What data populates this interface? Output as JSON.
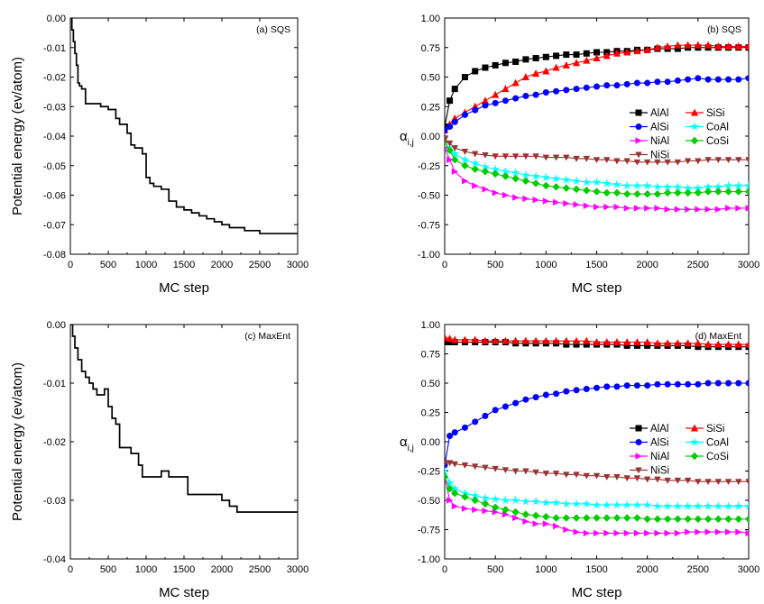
{
  "chart_data": [
    {
      "id": "a",
      "type": "line",
      "title": "(a) SQS",
      "xlabel": "MC step",
      "ylabel": "Potential energy (ev/atom)",
      "xlim": [
        0,
        3000
      ],
      "ylim": [
        -0.08,
        0.0
      ],
      "xticks": [
        0,
        500,
        1000,
        1500,
        2000,
        2500,
        3000
      ],
      "yticks": [
        0.0,
        -0.01,
        -0.02,
        -0.03,
        -0.04,
        -0.05,
        -0.06,
        -0.07,
        -0.08
      ],
      "ytick_labels": [
        "0.00",
        "-0.01",
        "-0.02",
        "-0.03",
        "-0.04",
        "-0.05",
        "-0.06",
        "-0.07",
        "-0.08"
      ],
      "grid": false,
      "series": [
        {
          "color": "#000000",
          "x": [
            0,
            20,
            40,
            60,
            80,
            100,
            120,
            150,
            200,
            250,
            300,
            400,
            500,
            550,
            600,
            650,
            700,
            750,
            800,
            850,
            900,
            950,
            1000,
            1050,
            1100,
            1200,
            1300,
            1400,
            1500,
            1600,
            1700,
            1800,
            1900,
            2000,
            2100,
            2200,
            2300,
            2400,
            2500,
            2600,
            2700,
            2800,
            2900,
            3000
          ],
          "y": [
            0.0,
            -0.004,
            -0.008,
            -0.012,
            -0.016,
            -0.022,
            -0.023,
            -0.024,
            -0.029,
            -0.029,
            -0.029,
            -0.03,
            -0.031,
            -0.031,
            -0.034,
            -0.036,
            -0.036,
            -0.039,
            -0.043,
            -0.044,
            -0.044,
            -0.046,
            -0.054,
            -0.056,
            -0.057,
            -0.058,
            -0.062,
            -0.064,
            -0.065,
            -0.066,
            -0.067,
            -0.068,
            -0.069,
            -0.07,
            -0.071,
            -0.071,
            -0.072,
            -0.072,
            -0.073,
            -0.073,
            -0.073,
            -0.073,
            -0.073,
            -0.073
          ]
        }
      ]
    },
    {
      "id": "b",
      "type": "line",
      "title": "(b) SQS",
      "xlabel": "MC step",
      "ylabel": "α",
      "ylabel_sub": "i,j",
      "xlim": [
        0,
        3000
      ],
      "ylim": [
        -1.0,
        1.0
      ],
      "xticks": [
        0,
        500,
        1000,
        1500,
        2000,
        2500,
        3000
      ],
      "yticks": [
        1.0,
        0.75,
        0.5,
        0.25,
        0.0,
        -0.25,
        -0.5,
        -0.75,
        -1.0
      ],
      "ytick_labels": [
        "1.00",
        "0.75",
        "0.50",
        "0.25",
        "0.00",
        "-0.25",
        "-0.50",
        "-0.75",
        "-1.00"
      ],
      "grid": false,
      "legend": "right-middle",
      "x": [
        0,
        50,
        100,
        200,
        300,
        400,
        500,
        600,
        700,
        800,
        900,
        1000,
        1100,
        1200,
        1300,
        1400,
        1500,
        1600,
        1700,
        1800,
        1900,
        2000,
        2100,
        2200,
        2300,
        2400,
        2500,
        2600,
        2700,
        2800,
        2900,
        3000
      ],
      "series": [
        {
          "name": "AlAl",
          "color": "#000000",
          "marker": "square",
          "values": [
            0.08,
            0.3,
            0.4,
            0.5,
            0.55,
            0.58,
            0.6,
            0.62,
            0.63,
            0.65,
            0.66,
            0.67,
            0.68,
            0.69,
            0.69,
            0.7,
            0.71,
            0.71,
            0.72,
            0.72,
            0.73,
            0.73,
            0.74,
            0.74,
            0.74,
            0.75,
            0.75,
            0.75,
            0.75,
            0.75,
            0.75,
            0.75
          ]
        },
        {
          "name": "SiSi",
          "color": "#ff0000",
          "marker": "triangle-up",
          "values": [
            0.05,
            0.1,
            0.15,
            0.2,
            0.25,
            0.3,
            0.35,
            0.4,
            0.45,
            0.5,
            0.53,
            0.55,
            0.58,
            0.6,
            0.62,
            0.64,
            0.66,
            0.68,
            0.7,
            0.71,
            0.72,
            0.73,
            0.75,
            0.76,
            0.77,
            0.77,
            0.77,
            0.77,
            0.76,
            0.76,
            0.76,
            0.76
          ]
        },
        {
          "name": "AlSi",
          "color": "#0000ff",
          "marker": "circle",
          "values": [
            0.05,
            0.08,
            0.12,
            0.18,
            0.22,
            0.26,
            0.28,
            0.3,
            0.32,
            0.34,
            0.35,
            0.37,
            0.38,
            0.39,
            0.4,
            0.41,
            0.42,
            0.43,
            0.43,
            0.44,
            0.45,
            0.45,
            0.46,
            0.46,
            0.47,
            0.48,
            0.49,
            0.48,
            0.48,
            0.48,
            0.48,
            0.49
          ]
        },
        {
          "name": "CoAl",
          "color": "#00ffff",
          "marker": "star",
          "values": [
            -0.05,
            -0.1,
            -0.15,
            -0.2,
            -0.23,
            -0.26,
            -0.28,
            -0.3,
            -0.31,
            -0.33,
            -0.34,
            -0.35,
            -0.36,
            -0.37,
            -0.38,
            -0.39,
            -0.39,
            -0.4,
            -0.41,
            -0.42,
            -0.42,
            -0.42,
            -0.43,
            -0.43,
            -0.43,
            -0.44,
            -0.44,
            -0.43,
            -0.43,
            -0.42,
            -0.42,
            -0.42
          ]
        },
        {
          "name": "NiAl",
          "color": "#ff00ff",
          "marker": "tri-right",
          "values": [
            -0.1,
            -0.2,
            -0.3,
            -0.38,
            -0.42,
            -0.45,
            -0.48,
            -0.5,
            -0.52,
            -0.53,
            -0.54,
            -0.55,
            -0.56,
            -0.57,
            -0.58,
            -0.59,
            -0.6,
            -0.6,
            -0.6,
            -0.61,
            -0.61,
            -0.61,
            -0.61,
            -0.62,
            -0.62,
            -0.62,
            -0.62,
            -0.62,
            -0.62,
            -0.61,
            -0.61,
            -0.61
          ]
        },
        {
          "name": "CoSi",
          "color": "#00cc00",
          "marker": "diamond",
          "values": [
            -0.05,
            -0.12,
            -0.2,
            -0.25,
            -0.28,
            -0.3,
            -0.32,
            -0.34,
            -0.36,
            -0.38,
            -0.4,
            -0.42,
            -0.43,
            -0.44,
            -0.45,
            -0.46,
            -0.47,
            -0.48,
            -0.48,
            -0.49,
            -0.49,
            -0.49,
            -0.49,
            -0.48,
            -0.48,
            -0.48,
            -0.48,
            -0.47,
            -0.47,
            -0.47,
            -0.47,
            -0.47
          ]
        },
        {
          "name": "NiSi",
          "color": "#993333",
          "marker": "triangle-down",
          "values": [
            -0.03,
            -0.06,
            -0.1,
            -0.13,
            -0.15,
            -0.16,
            -0.17,
            -0.17,
            -0.17,
            -0.17,
            -0.17,
            -0.18,
            -0.18,
            -0.18,
            -0.19,
            -0.19,
            -0.2,
            -0.2,
            -0.21,
            -0.21,
            -0.22,
            -0.22,
            -0.22,
            -0.22,
            -0.22,
            -0.21,
            -0.21,
            -0.2,
            -0.2,
            -0.2,
            -0.2,
            -0.2
          ]
        }
      ]
    },
    {
      "id": "c",
      "type": "line",
      "title": "(c) MaxEnt",
      "xlabel": "MC step",
      "ylabel": "Potential energy (ev/atom)",
      "xlim": [
        0,
        3000
      ],
      "ylim": [
        -0.04,
        0.0
      ],
      "xticks": [
        0,
        500,
        1000,
        1500,
        2000,
        2500,
        3000
      ],
      "yticks": [
        0.0,
        -0.01,
        -0.02,
        -0.03,
        -0.04
      ],
      "ytick_labels": [
        "0.00",
        "-0.01",
        "-0.02",
        "-0.03",
        "-0.04"
      ],
      "grid": false,
      "series": [
        {
          "color": "#000000",
          "x": [
            0,
            30,
            60,
            100,
            150,
            200,
            250,
            300,
            350,
            400,
            450,
            500,
            550,
            600,
            650,
            700,
            750,
            800,
            850,
            900,
            950,
            1000,
            1100,
            1200,
            1300,
            1400,
            1500,
            1550,
            1600,
            1700,
            1800,
            1900,
            2000,
            2100,
            2200,
            2300,
            2400,
            2500,
            2600,
            2700,
            2800,
            2900,
            3000
          ],
          "y": [
            0.0,
            -0.002,
            -0.004,
            -0.006,
            -0.008,
            -0.009,
            -0.01,
            -0.011,
            -0.012,
            -0.012,
            -0.011,
            -0.014,
            -0.016,
            -0.017,
            -0.021,
            -0.021,
            -0.021,
            -0.022,
            -0.022,
            -0.024,
            -0.026,
            -0.026,
            -0.026,
            -0.025,
            -0.026,
            -0.026,
            -0.026,
            -0.029,
            -0.029,
            -0.029,
            -0.029,
            -0.029,
            -0.03,
            -0.031,
            -0.032,
            -0.032,
            -0.032,
            -0.032,
            -0.032,
            -0.032,
            -0.032,
            -0.032,
            -0.032
          ]
        }
      ]
    },
    {
      "id": "d",
      "type": "line",
      "title": "(d) MaxEnt",
      "xlabel": "MC step",
      "ylabel": "α",
      "ylabel_sub": "i,j",
      "xlim": [
        0,
        3000
      ],
      "ylim": [
        -1.0,
        1.0
      ],
      "xticks": [
        0,
        500,
        1000,
        1500,
        2000,
        2500,
        3000
      ],
      "yticks": [
        1.0,
        0.75,
        0.5,
        0.25,
        0.0,
        -0.25,
        -0.5,
        -0.75,
        -1.0
      ],
      "ytick_labels": [
        "1.00",
        "0.75",
        "0.50",
        "0.25",
        "0.00",
        "-0.25",
        "-0.50",
        "-0.75",
        "-1.00"
      ],
      "grid": false,
      "legend": "right-middle",
      "x": [
        0,
        50,
        100,
        200,
        300,
        400,
        500,
        600,
        700,
        800,
        900,
        1000,
        1100,
        1200,
        1300,
        1400,
        1500,
        1600,
        1700,
        1800,
        1900,
        2000,
        2100,
        2200,
        2300,
        2400,
        2500,
        2600,
        2700,
        2800,
        2900,
        3000
      ],
      "series": [
        {
          "name": "AlAl",
          "color": "#000000",
          "marker": "square",
          "values": [
            0.85,
            0.85,
            0.85,
            0.85,
            0.85,
            0.85,
            0.85,
            0.85,
            0.84,
            0.84,
            0.84,
            0.84,
            0.84,
            0.83,
            0.83,
            0.83,
            0.83,
            0.83,
            0.83,
            0.82,
            0.82,
            0.82,
            0.82,
            0.82,
            0.82,
            0.82,
            0.81,
            0.81,
            0.81,
            0.81,
            0.81,
            0.81
          ]
        },
        {
          "name": "SiSi",
          "color": "#ff0000",
          "marker": "triangle-up",
          "values": [
            0.89,
            0.88,
            0.87,
            0.87,
            0.87,
            0.86,
            0.86,
            0.86,
            0.86,
            0.86,
            0.86,
            0.86,
            0.86,
            0.86,
            0.86,
            0.86,
            0.85,
            0.85,
            0.85,
            0.85,
            0.85,
            0.85,
            0.84,
            0.84,
            0.84,
            0.84,
            0.84,
            0.83,
            0.83,
            0.83,
            0.83,
            0.83
          ]
        },
        {
          "name": "AlSi",
          "color": "#0000ff",
          "marker": "circle",
          "values": [
            -0.2,
            0.05,
            0.08,
            0.12,
            0.17,
            0.22,
            0.27,
            0.3,
            0.33,
            0.36,
            0.38,
            0.4,
            0.41,
            0.43,
            0.44,
            0.45,
            0.46,
            0.47,
            0.47,
            0.48,
            0.48,
            0.48,
            0.49,
            0.49,
            0.49,
            0.49,
            0.49,
            0.5,
            0.5,
            0.5,
            0.5,
            0.5
          ]
        },
        {
          "name": "CoAl",
          "color": "#00ffff",
          "marker": "star",
          "values": [
            -0.25,
            -0.35,
            -0.4,
            -0.44,
            -0.46,
            -0.48,
            -0.49,
            -0.5,
            -0.5,
            -0.51,
            -0.51,
            -0.52,
            -0.52,
            -0.53,
            -0.53,
            -0.53,
            -0.54,
            -0.54,
            -0.54,
            -0.54,
            -0.54,
            -0.54,
            -0.55,
            -0.55,
            -0.55,
            -0.55,
            -0.55,
            -0.55,
            -0.55,
            -0.55,
            -0.55,
            -0.55
          ]
        },
        {
          "name": "NiAl",
          "color": "#ff00ff",
          "marker": "tri-right",
          "values": [
            -0.3,
            -0.5,
            -0.55,
            -0.57,
            -0.58,
            -0.59,
            -0.6,
            -0.62,
            -0.65,
            -0.68,
            -0.7,
            -0.7,
            -0.72,
            -0.75,
            -0.77,
            -0.78,
            -0.78,
            -0.78,
            -0.78,
            -0.78,
            -0.78,
            -0.78,
            -0.78,
            -0.78,
            -0.78,
            -0.77,
            -0.77,
            -0.77,
            -0.77,
            -0.77,
            -0.77,
            -0.78
          ]
        },
        {
          "name": "CoSi",
          "color": "#00cc00",
          "marker": "diamond",
          "values": [
            -0.3,
            -0.4,
            -0.44,
            -0.47,
            -0.5,
            -0.53,
            -0.56,
            -0.58,
            -0.6,
            -0.62,
            -0.63,
            -0.64,
            -0.65,
            -0.65,
            -0.65,
            -0.65,
            -0.65,
            -0.65,
            -0.65,
            -0.65,
            -0.65,
            -0.66,
            -0.66,
            -0.66,
            -0.66,
            -0.66,
            -0.66,
            -0.66,
            -0.66,
            -0.66,
            -0.66,
            -0.66
          ]
        },
        {
          "name": "NiSi",
          "color": "#993333",
          "marker": "triangle-down",
          "values": [
            -0.18,
            -0.18,
            -0.19,
            -0.2,
            -0.21,
            -0.22,
            -0.23,
            -0.24,
            -0.25,
            -0.25,
            -0.26,
            -0.27,
            -0.27,
            -0.28,
            -0.28,
            -0.29,
            -0.29,
            -0.3,
            -0.3,
            -0.31,
            -0.31,
            -0.32,
            -0.32,
            -0.33,
            -0.33,
            -0.33,
            -0.34,
            -0.34,
            -0.34,
            -0.34,
            -0.34,
            -0.34
          ]
        }
      ]
    }
  ]
}
